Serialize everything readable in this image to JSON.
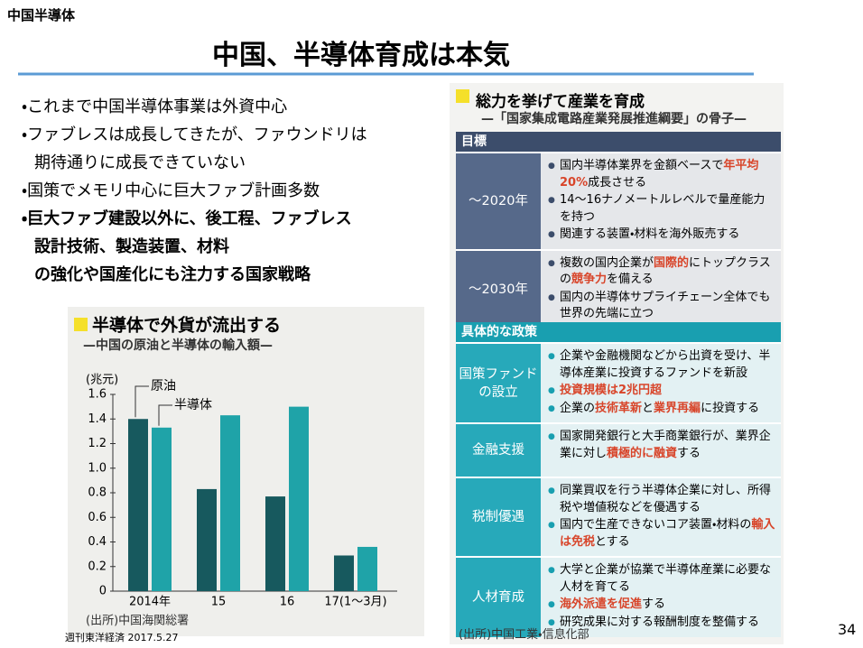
{
  "header": {
    "tag": "中国半導体",
    "title": "中国、半導体育成は本気"
  },
  "bullets": [
    {
      "lines": [
        "・これまで中国半導体事業は外資中心"
      ],
      "bold": false
    },
    {
      "lines": [
        "・ファブレスは成長してきたが、ファウンドリは",
        "期待通りに成長できていない"
      ],
      "bold": false
    },
    {
      "lines": [
        "・国策でメモリ中心に巨大ファブ計画多数"
      ],
      "bold": false
    },
    {
      "lines": [
        "・巨大ファブ建設以外に、後工程、ファブレス",
        "設計技術、製造装置、材料",
        "の強化や国産化にも注力する国家戦略"
      ],
      "bold": true
    }
  ],
  "chart_data": {
    "type": "bar",
    "title": "半導体で外貨が流出する",
    "subtitle": "—中国の原油と半導体の輸入額—",
    "unit": "(兆元)",
    "categories": [
      "2014年",
      "15",
      "16",
      "17(1〜3月)"
    ],
    "series": [
      {
        "name": "原油",
        "color": "#17595e",
        "values": [
          1.4,
          0.83,
          0.77,
          0.29
        ]
      },
      {
        "name": "半導体",
        "color": "#1fa3a8",
        "values": [
          1.33,
          1.43,
          1.5,
          0.36
        ]
      }
    ],
    "ylim": [
      0,
      1.6
    ],
    "yticks": [
      0,
      0.2,
      0.4,
      0.6,
      0.8,
      {
        "value": 1,
        "label": "1.0"
      },
      1.2,
      1.4,
      1.6
    ],
    "source": "(出所)中国海関総署"
  },
  "goals": {
    "title": "総力を挙げて産業を育成",
    "subtitle": "—「国家集成電路産業発展推進綱要」の骨子—",
    "header": "目標",
    "rows": [
      {
        "label": [
          "〜2020年"
        ],
        "items": [
          [
            "国内半導体業界を金額ベースで",
            {
              "text": "年平均20%",
              "highlight": true
            },
            "成長させる"
          ],
          [
            "14〜16ナノメートルレベルで量産能力を持つ"
          ],
          [
            "関連する装置・材料を海外販売する"
          ]
        ]
      },
      {
        "label": [
          "〜2030年"
        ],
        "items": [
          [
            "複数の国内企業が",
            {
              "text": "国際的",
              "highlight": true
            },
            "にトップクラスの",
            {
              "text": "競争力",
              "highlight": true
            },
            "を備える"
          ],
          [
            "国内の半導体サプライチェーン全体でも世界の先端に立つ"
          ]
        ]
      }
    ]
  },
  "policies": {
    "header": "具体的な政策",
    "rows": [
      {
        "label": [
          "国策ファンド",
          "の設立"
        ],
        "items": [
          [
            "企業や金融機関などから出資を受け、半導体産業に投資するファンドを新設"
          ],
          [
            {
              "text": "投資規模は2兆円超",
              "highlight": true
            }
          ],
          [
            "企業の",
            {
              "text": "技術革新",
              "highlight": true
            },
            "と",
            {
              "text": "業界再編",
              "highlight": true
            },
            "に投資する"
          ]
        ]
      },
      {
        "label": [
          "金融支援"
        ],
        "items": [
          [
            "国家開発銀行と大手商業銀行が、業界企業に対し",
            {
              "text": "積極的に融資",
              "highlight": true
            },
            "する"
          ]
        ]
      },
      {
        "label": [
          "税制優遇"
        ],
        "items": [
          [
            "同業買収を行う半導体企業に対し、所得税や増値税などを優遇する"
          ],
          [
            "国内で生産できないコア装置・材料の",
            {
              "text": "輸入は免税",
              "highlight": true
            },
            "とする"
          ]
        ]
      },
      {
        "label": [
          "人材育成"
        ],
        "items": [
          [
            "大学と企業が協業で半導体産業に必要な人材を育てる"
          ],
          [
            {
              "text": "海外派遣を促進",
              "highlight": true
            },
            "する"
          ],
          [
            "研究成果に対する報酬制度を整備する"
          ]
        ]
      }
    ],
    "source": "(出所)中国工業・信息化部"
  },
  "footer": {
    "credit": "週刊東洋経済 2017.5.27",
    "page": "34"
  }
}
